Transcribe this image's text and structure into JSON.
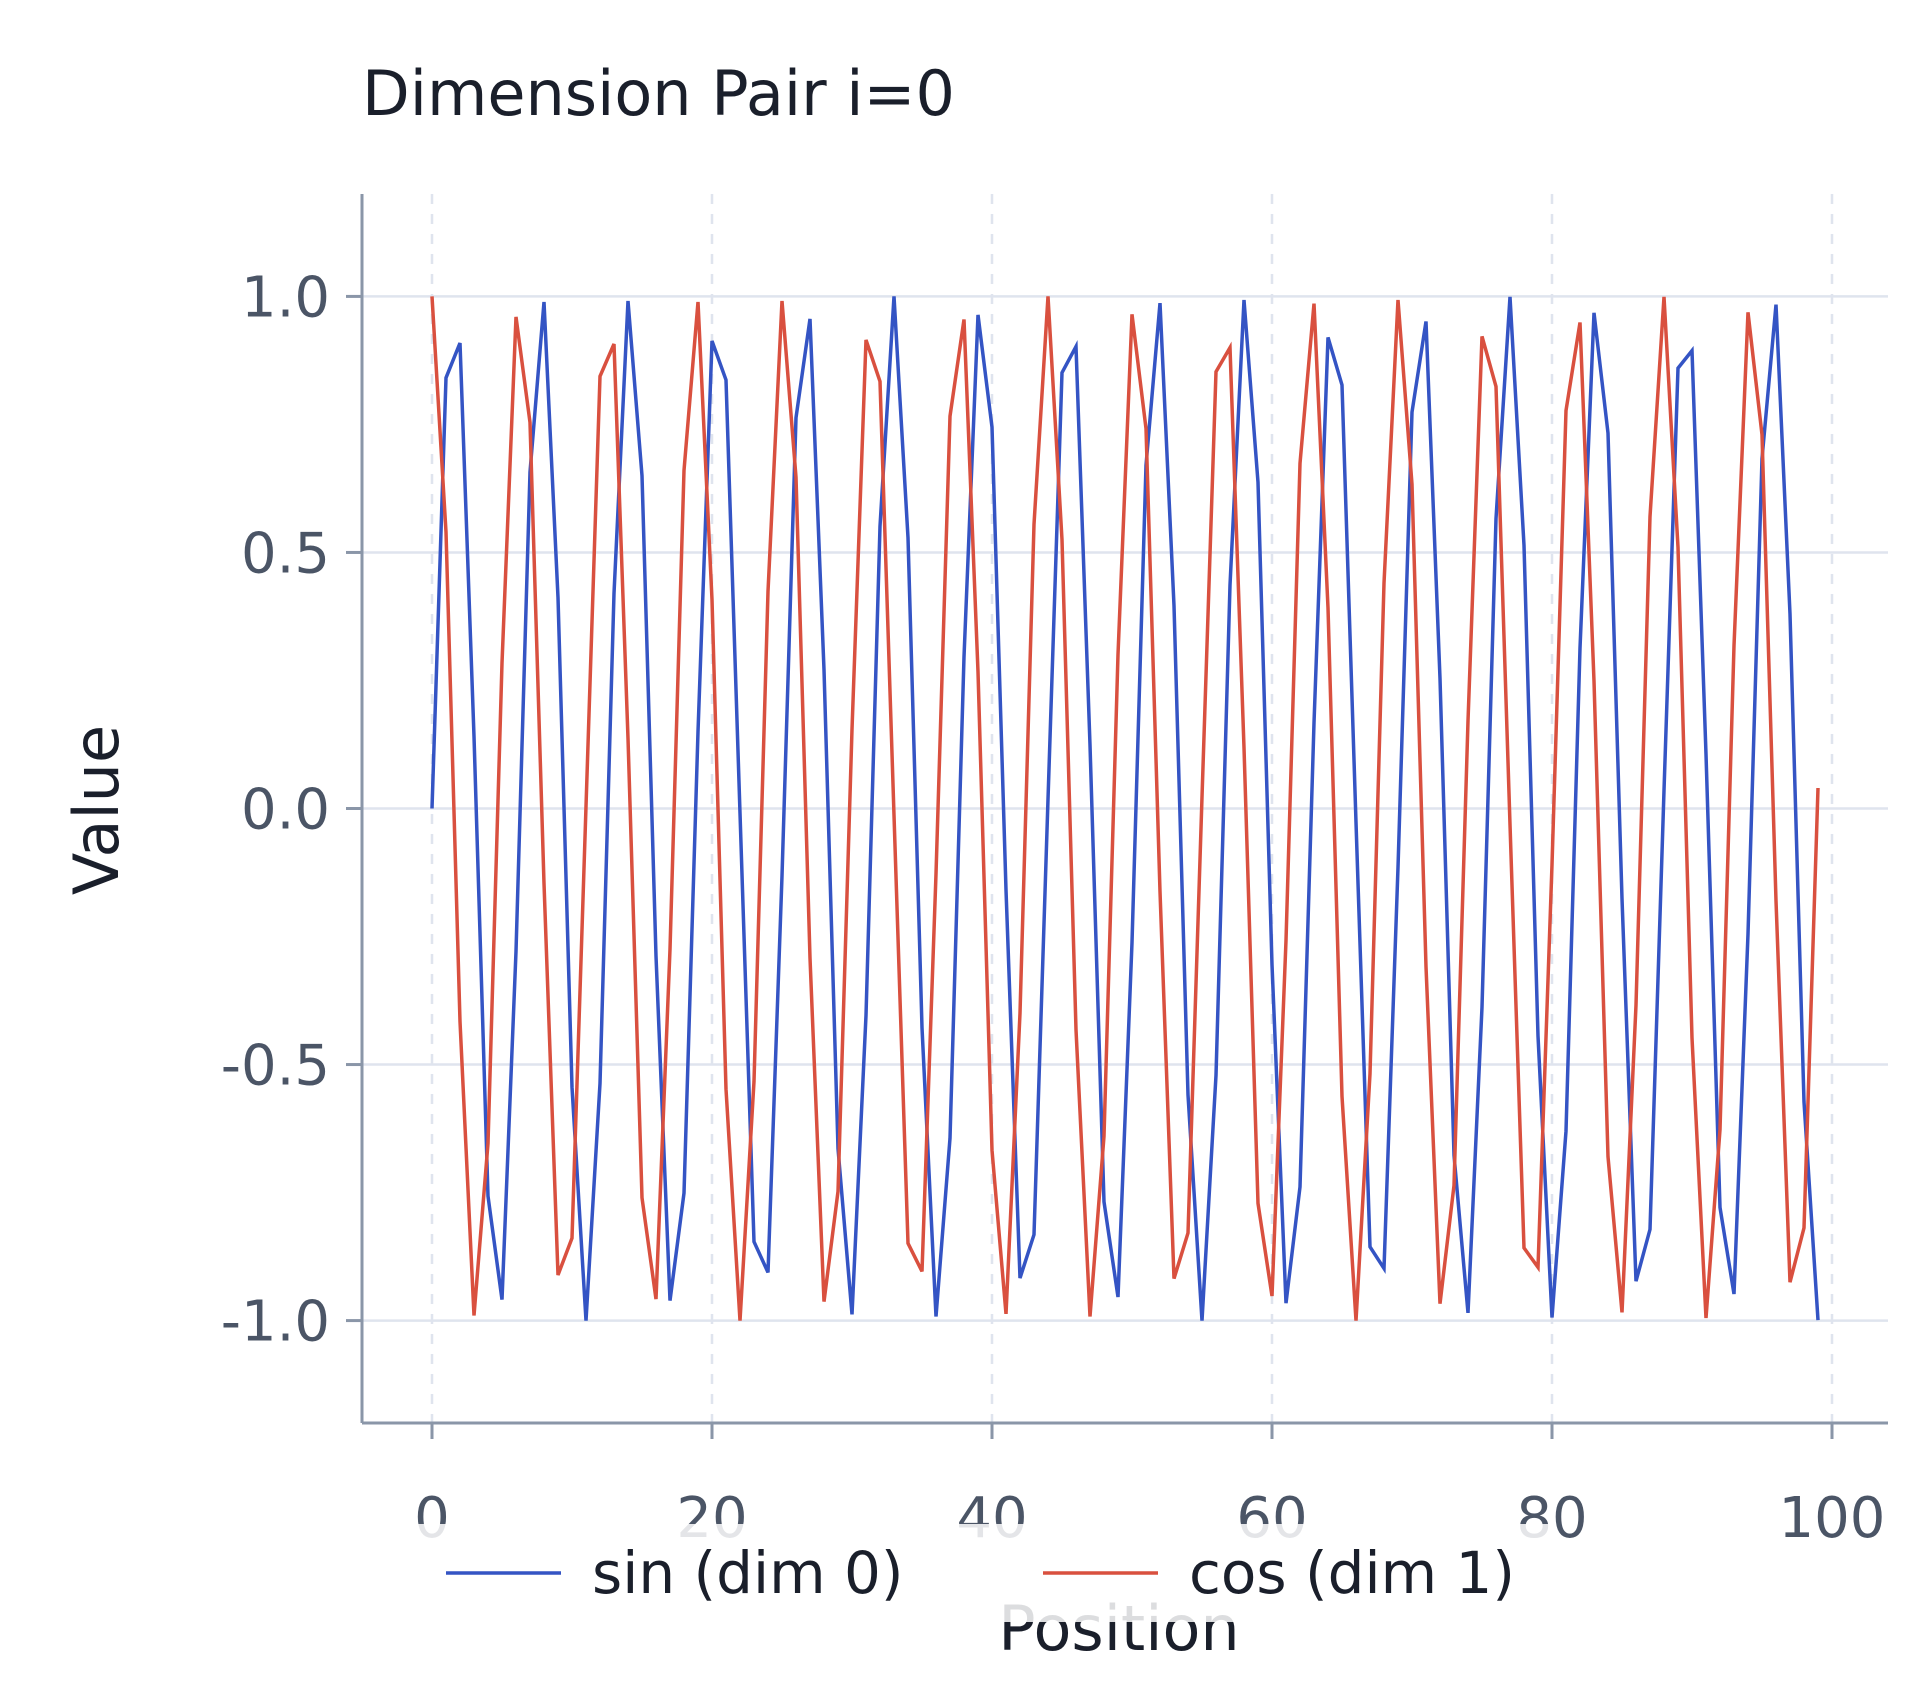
{
  "chart_data": {
    "type": "line",
    "title": "Dimension Pair i=0",
    "xlabel": "Position",
    "ylabel": "Value",
    "xlim": [
      -5,
      104
    ],
    "ylim": [
      -1.2,
      1.2
    ],
    "xticks": [
      0,
      20,
      40,
      60,
      80,
      100
    ],
    "yticks": [
      -1.0,
      -0.5,
      0.0,
      0.5,
      1.0
    ],
    "xtick_labels": [
      "0",
      "20",
      "40",
      "60",
      "80",
      "100"
    ],
    "ytick_labels": [
      "-1.0",
      "-0.5",
      "0.0",
      "0.5",
      "1.0"
    ],
    "grid": true,
    "legend_position": "bottom",
    "x": [
      0,
      1,
      2,
      3,
      4,
      5,
      6,
      7,
      8,
      9,
      10,
      11,
      12,
      13,
      14,
      15,
      16,
      17,
      18,
      19,
      20,
      21,
      22,
      23,
      24,
      25,
      26,
      27,
      28,
      29,
      30,
      31,
      32,
      33,
      34,
      35,
      36,
      37,
      38,
      39,
      40,
      41,
      42,
      43,
      44,
      45,
      46,
      47,
      48,
      49,
      50,
      51,
      52,
      53,
      54,
      55,
      56,
      57,
      58,
      59,
      60,
      61,
      62,
      63,
      64,
      65,
      66,
      67,
      68,
      69,
      70,
      71,
      72,
      73,
      74,
      75,
      76,
      77,
      78,
      79,
      80,
      81,
      82,
      83,
      84,
      85,
      86,
      87,
      88,
      89,
      90,
      91,
      92,
      93,
      94,
      95,
      96,
      97,
      98,
      99
    ],
    "series": [
      {
        "name": "sin (dim 0)",
        "color": "#3454c4",
        "values": [
          0.0,
          0.841,
          0.909,
          0.141,
          -0.757,
          -0.959,
          -0.279,
          0.657,
          0.989,
          0.412,
          -0.544,
          -1.0,
          -0.537,
          0.42,
          0.991,
          0.65,
          -0.288,
          -0.961,
          -0.751,
          0.15,
          0.913,
          0.837,
          -0.009,
          -0.846,
          -0.906,
          -0.132,
          0.763,
          0.956,
          0.271,
          -0.664,
          -0.988,
          -0.404,
          0.551,
          1.0,
          0.529,
          -0.428,
          -0.992,
          -0.644,
          0.296,
          0.964,
          0.745,
          -0.159,
          -0.917,
          -0.832,
          0.018,
          0.851,
          0.902,
          0.124,
          -0.768,
          -0.954,
          -0.262,
          0.67,
          0.987,
          0.396,
          -0.559,
          -1.0,
          -0.521,
          0.436,
          0.993,
          0.637,
          -0.305,
          -0.966,
          -0.739,
          0.167,
          0.92,
          0.827,
          -0.027,
          -0.856,
          -0.898,
          -0.115,
          0.774,
          0.951,
          0.254,
          -0.677,
          -0.985,
          -0.388,
          0.566,
          0.999,
          0.514,
          -0.444,
          -0.994,
          -0.63,
          0.313,
          0.968,
          0.733,
          -0.176,
          -0.923,
          -0.822,
          0.035,
          0.86,
          0.894,
          0.106,
          -0.779,
          -0.948,
          -0.245,
          0.683,
          0.984,
          0.38,
          -0.573,
          -0.999
        ]
      },
      {
        "name": "cos (dim 1)",
        "color": "#d9503f",
        "values": [
          1.0,
          0.54,
          -0.416,
          -0.99,
          -0.654,
          0.284,
          0.96,
          0.754,
          -0.146,
          -0.911,
          -0.839,
          0.004,
          0.844,
          0.907,
          0.137,
          -0.76,
          -0.958,
          -0.275,
          0.66,
          0.989,
          0.408,
          -0.548,
          -1.0,
          -0.533,
          0.424,
          0.991,
          0.647,
          -0.292,
          -0.963,
          -0.748,
          0.154,
          0.915,
          0.834,
          -0.013,
          -0.849,
          -0.904,
          -0.128,
          0.766,
          0.955,
          0.267,
          -0.667,
          -0.987,
          -0.4,
          0.555,
          1.0,
          0.525,
          -0.432,
          -0.992,
          -0.64,
          0.301,
          0.965,
          0.742,
          -0.162,
          -0.918,
          -0.829,
          0.022,
          0.853,
          0.9,
          0.119,
          -0.771,
          -0.952,
          -0.258,
          0.674,
          0.986,
          0.392,
          -0.562,
          -1.0,
          -0.518,
          0.44,
          0.993,
          0.633,
          -0.309,
          -0.967,
          -0.736,
          0.171,
          0.922,
          0.824,
          -0.031,
          -0.858,
          -0.896,
          -0.11,
          0.777,
          0.949,
          0.249,
          -0.68,
          -0.984,
          -0.384,
          0.57,
          0.999,
          0.51,
          -0.448,
          -0.995,
          -0.627,
          0.318,
          0.969,
          0.73,
          -0.18,
          -0.925,
          -0.819,
          0.04
        ]
      }
    ]
  }
}
